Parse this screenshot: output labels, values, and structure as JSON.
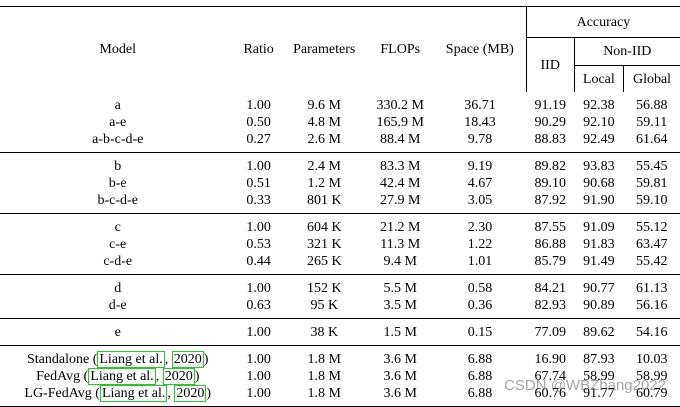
{
  "headers": {
    "model": "Model",
    "ratio": "Ratio",
    "parameters": "Parameters",
    "flops": "FLOPs",
    "space": "Space (MB)",
    "accuracy": "Accuracy",
    "iid": "IID",
    "non_iid": "Non-IID",
    "local": "Local",
    "global": "Global"
  },
  "groups": [
    [
      {
        "model": "a",
        "ratio": "1.00",
        "params": "9.6 M",
        "flops": "330.2 M",
        "space": "36.71",
        "iid": "91.19",
        "local": "92.38",
        "global": "56.88"
      },
      {
        "model": "a-e",
        "ratio": "0.50",
        "params": "4.8 M",
        "flops": "165.9 M",
        "space": "18.43",
        "iid": "90.29",
        "local": "92.10",
        "global": "59.11"
      },
      {
        "model": "a-b-c-d-e",
        "ratio": "0.27",
        "params": "2.6 M",
        "flops": "88.4 M",
        "space": "9.78",
        "iid": "88.83",
        "local": "92.49",
        "global": "61.64"
      }
    ],
    [
      {
        "model": "b",
        "ratio": "1.00",
        "params": "2.4 M",
        "flops": "83.3 M",
        "space": "9.19",
        "iid": "89.82",
        "local": "93.83",
        "global": "55.45"
      },
      {
        "model": "b-e",
        "ratio": "0.51",
        "params": "1.2 M",
        "flops": "42.4 M",
        "space": "4.67",
        "iid": "89.10",
        "local": "90.68",
        "global": "59.81"
      },
      {
        "model": "b-c-d-e",
        "ratio": "0.33",
        "params": "801 K",
        "flops": "27.9 M",
        "space": "3.05",
        "iid": "87.92",
        "local": "91.90",
        "global": "59.10"
      }
    ],
    [
      {
        "model": "c",
        "ratio": "1.00",
        "params": "604 K",
        "flops": "21.2 M",
        "space": "2.30",
        "iid": "87.55",
        "local": "91.09",
        "global": "55.12"
      },
      {
        "model": "c-e",
        "ratio": "0.53",
        "params": "321 K",
        "flops": "11.3 M",
        "space": "1.22",
        "iid": "86.88",
        "local": "91.83",
        "global": "63.47"
      },
      {
        "model": "c-d-e",
        "ratio": "0.44",
        "params": "265 K",
        "flops": "9.4 M",
        "space": "1.01",
        "iid": "85.79",
        "local": "91.49",
        "global": "55.42"
      }
    ],
    [
      {
        "model": "d",
        "ratio": "1.00",
        "params": "152 K",
        "flops": "5.5 M",
        "space": "0.58",
        "iid": "84.21",
        "local": "90.77",
        "global": "61.13"
      },
      {
        "model": "d-e",
        "ratio": "0.63",
        "params": "95 K",
        "flops": "3.5 M",
        "space": "0.36",
        "iid": "82.93",
        "local": "90.89",
        "global": "56.16"
      }
    ],
    [
      {
        "model": "e",
        "ratio": "1.00",
        "params": "38 K",
        "flops": "1.5 M",
        "space": "0.15",
        "iid": "77.09",
        "local": "89.62",
        "global": "54.16"
      }
    ],
    [
      {
        "model": "Standalone",
        "cite_name": "Liang et al.",
        "cite_year": "2020",
        "ratio": "1.00",
        "params": "1.8 M",
        "flops": "3.6 M",
        "space": "6.88",
        "iid": "16.90",
        "local": "87.93",
        "global": "10.03"
      },
      {
        "model": "FedAvg",
        "cite_name": "Liang et al.",
        "cite_year": "2020",
        "ratio": "1.00",
        "params": "1.8 M",
        "flops": "3.6 M",
        "space": "6.88",
        "iid": "67.74",
        "local": "58.99",
        "global": "58.99"
      },
      {
        "model": "LG-FedAvg",
        "cite_name": "Liang et al.",
        "cite_year": "2020",
        "ratio": "1.00",
        "params": "1.8 M",
        "flops": "3.6 M",
        "space": "6.88",
        "iid": "60.76",
        "local": "91.77",
        "global": "60.79"
      }
    ]
  ],
  "watermark": "CSDN @WBZhang2022"
}
